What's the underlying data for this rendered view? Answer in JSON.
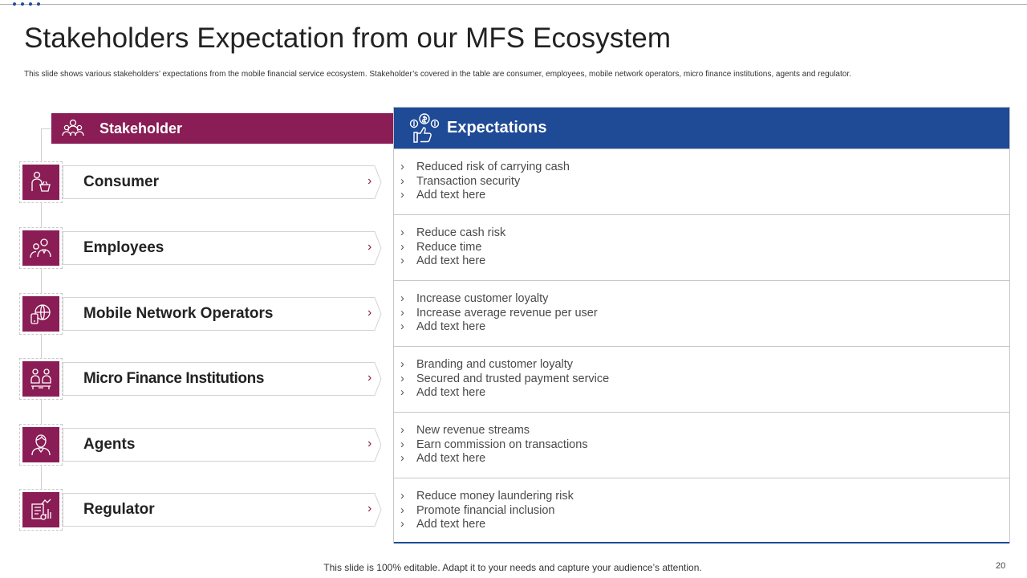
{
  "title": "Stakeholders Expectation from our MFS Ecosystem",
  "subtitle": "This slide shows various stakeholders’ expectations from the mobile  financial service ecosystem. Stakeholder’s covered in the table are consumer, employees, mobile network operators, micro finance institutions, agents and regulator.",
  "stakeholder_header": {
    "label": "Stakeholder",
    "icon": "group-icon"
  },
  "expectations_header": {
    "label": "Expectations",
    "icon": "money-thumbs-up-icon"
  },
  "stakeholders": [
    {
      "label": "Consumer",
      "icon": "shopper-icon"
    },
    {
      "label": "Employees",
      "icon": "employees-icon"
    },
    {
      "label": "Mobile Network Operators",
      "icon": "mobile-globe-icon"
    },
    {
      "label": "Micro Finance Institutions",
      "icon": "finance-institution-icon"
    },
    {
      "label": "Agents",
      "icon": "agent-icon"
    },
    {
      "label": "Regulator",
      "icon": "regulator-chart-icon"
    }
  ],
  "bullet": "›",
  "expectations": [
    [
      "Reduced  risk of  carrying cash",
      "Transaction security",
      "Add text here"
    ],
    [
      "Reduce cash risk",
      "Reduce time",
      "Add text here"
    ],
    [
      "Increase customer loyalty",
      "Increase average revenue per user",
      "Add text here"
    ],
    [
      "Branding and customer loyalty",
      "Secured and trusted payment service",
      "Add text here"
    ],
    [
      "New revenue streams",
      "Earn commission on transactions",
      "Add text here"
    ],
    [
      "Reduce money laundering risk",
      "Promote financial inclusion",
      "Add text here"
    ]
  ],
  "footer": "This slide is 100% editable. Adapt it to your needs and capture your audience’s attention.",
  "page_number": "20",
  "colors": {
    "stakeholder_accent": "#8a1d55",
    "expectations_accent": "#1f4a96"
  }
}
